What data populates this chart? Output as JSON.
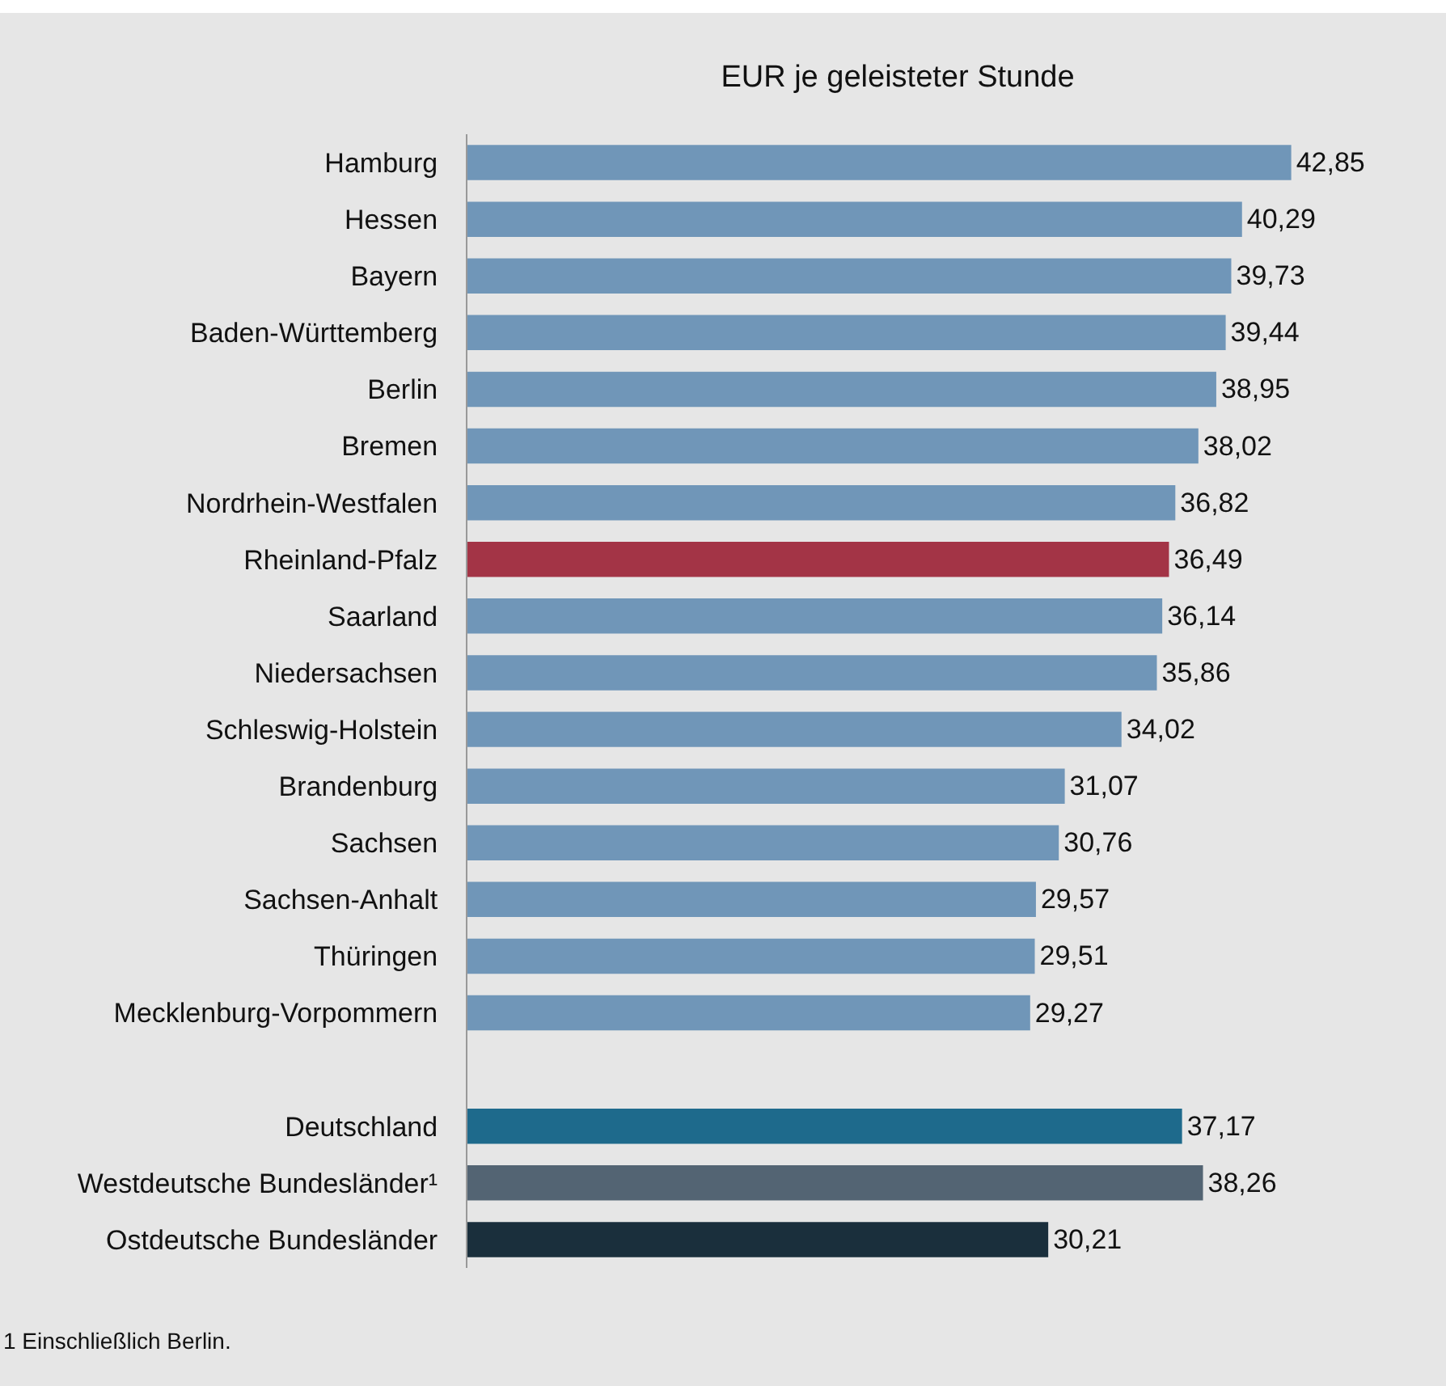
{
  "chart_data": {
    "type": "bar",
    "orientation": "horizontal",
    "title": "EUR je geleisteter Stunde",
    "categories": [
      "Hamburg",
      "Hessen",
      "Bayern",
      "Baden-Württemberg",
      "Berlin",
      "Bremen",
      "Nordrhein-Westfalen",
      "Rheinland-Pfalz",
      "Saarland",
      "Niedersachsen",
      "Schleswig-Holstein",
      "Brandenburg",
      "Sachsen",
      "Sachsen-Anhalt",
      "Thüringen",
      "Mecklenburg-Vorpommern",
      null,
      "Deutschland",
      "Westdeutsche Bundesländer¹",
      "Ostdeutsche Bundesländer"
    ],
    "values": [
      42.85,
      40.29,
      39.73,
      39.44,
      38.95,
      38.02,
      36.82,
      36.49,
      36.14,
      35.86,
      34.02,
      31.07,
      30.76,
      29.57,
      29.51,
      29.27,
      null,
      37.17,
      38.26,
      30.21
    ],
    "value_labels": [
      "42,85",
      "40,29",
      "39,73",
      "39,44",
      "38,95",
      "38,02",
      "36,82",
      "36,49",
      "36,14",
      "35,86",
      "34,02",
      "31,07",
      "30,76",
      "29,57",
      "29,51",
      "29,27",
      null,
      "37,17",
      "38,26",
      "30,21"
    ],
    "colors": [
      "#7096b8",
      "#7096b8",
      "#7096b8",
      "#7096b8",
      "#7096b8",
      "#7096b8",
      "#7096b8",
      "#a33446",
      "#7096b8",
      "#7096b8",
      "#7096b8",
      "#7096b8",
      "#7096b8",
      "#7096b8",
      "#7096b8",
      "#7096b8",
      "#7096b8",
      "#1e6a8c",
      "#536473",
      "#1a2f3c"
    ],
    "annotations": [
      "1 Einschließlich Berlin."
    ],
    "tick_labels": "y"
  }
}
